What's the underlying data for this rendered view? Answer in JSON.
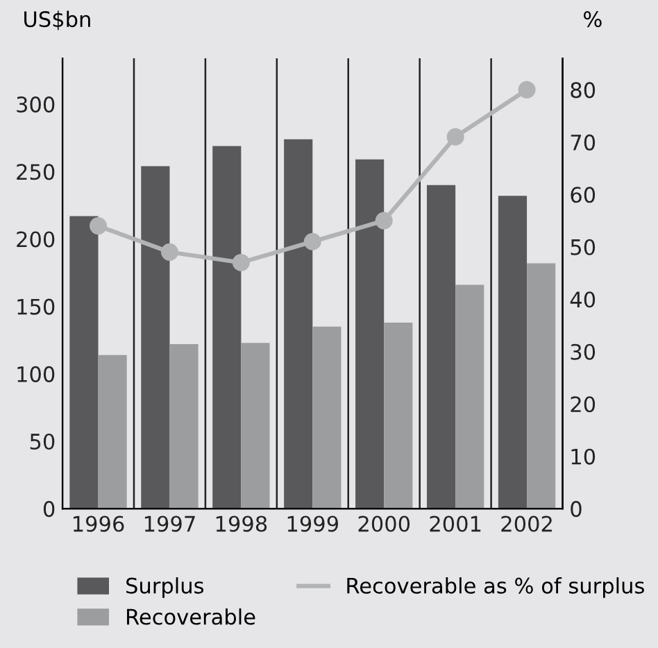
{
  "chart_data": {
    "type": "bar",
    "ylabel": "US$bn",
    "y2label": "%",
    "categories": [
      "1996",
      "1997",
      "1998",
      "1999",
      "2000",
      "2001",
      "2002"
    ],
    "series": [
      {
        "name": "Surplus",
        "color": "#59595b",
        "values": [
          217,
          254,
          269,
          274,
          259,
          240,
          232
        ]
      },
      {
        "name": "Recoverable",
        "color": "#9c9d9f",
        "values": [
          114,
          122,
          123,
          135,
          138,
          166,
          182
        ]
      },
      {
        "name": "Recoverable as % of surplus",
        "type": "line",
        "axis": "y2",
        "color": "#b2b3b5",
        "marker": "circle",
        "values": [
          54,
          49,
          47,
          51,
          55,
          71,
          80
        ]
      }
    ],
    "ylim": [
      0,
      334
    ],
    "yticks": [
      0,
      50,
      100,
      150,
      200,
      250,
      300
    ],
    "y2lim": [
      0,
      86
    ],
    "y2ticks": [
      0,
      10,
      20,
      30,
      40,
      50,
      60,
      70,
      80
    ],
    "grid": "x",
    "legend": "bottom"
  }
}
